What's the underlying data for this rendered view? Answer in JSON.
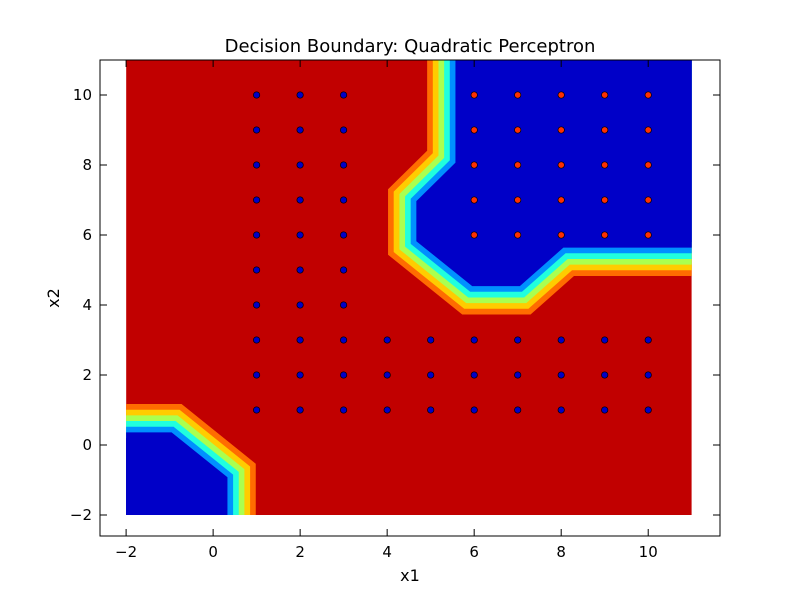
{
  "chart_data": {
    "type": "contour",
    "title": "Decision Boundary: Quadratic Perceptron",
    "xlabel": "x1",
    "ylabel": "x2",
    "xlim": [
      -2.6,
      11.65
    ],
    "ylim": [
      -2.6,
      11.0
    ],
    "xticks": [
      -2,
      0,
      2,
      4,
      6,
      8,
      10
    ],
    "yticks": [
      -2,
      0,
      2,
      4,
      6,
      8,
      10
    ],
    "xtick_labels": [
      "−2",
      "0",
      "2",
      "4",
      "6",
      "8",
      "10"
    ],
    "ytick_labels": [
      "−2",
      "0",
      "2",
      "4",
      "6",
      "8",
      "10"
    ],
    "grid": false,
    "colors": {
      "negative_region": "#c10000",
      "positive_region": "#0000c8",
      "transition_bands": [
        "#c10000",
        "#ff6c00",
        "#ffcc00",
        "#aaff50",
        "#20ffde",
        "#0090ff",
        "#0000c8"
      ],
      "class_blue_point": "#0000c8",
      "class_red_point": "#ff3000"
    },
    "regions": [
      {
        "class": "positive",
        "label_color": "blue",
        "polygon": [
          [
            5.7,
            11
          ],
          [
            11,
            11
          ],
          [
            11,
            5.8
          ],
          [
            8.0,
            5.8
          ],
          [
            7.0,
            4.7
          ],
          [
            6.0,
            4.7
          ],
          [
            4.8,
            5.9
          ],
          [
            4.8,
            6.9
          ],
          [
            5.7,
            8.0
          ]
        ]
      },
      {
        "class": "positive",
        "label_color": "blue",
        "polygon": [
          [
            -2,
            -2
          ],
          [
            0.2,
            -2
          ],
          [
            0.2,
            -1.0
          ],
          [
            -1.0,
            0.2
          ],
          [
            -2,
            0.2
          ]
        ]
      }
    ],
    "series": [
      {
        "color": "blue",
        "points": [
          [
            1,
            1
          ],
          [
            1,
            2
          ],
          [
            1,
            3
          ],
          [
            1,
            4
          ],
          [
            1,
            5
          ],
          [
            1,
            6
          ],
          [
            1,
            7
          ],
          [
            1,
            8
          ],
          [
            1,
            9
          ],
          [
            1,
            10
          ],
          [
            2,
            1
          ],
          [
            2,
            2
          ],
          [
            2,
            3
          ],
          [
            2,
            4
          ],
          [
            2,
            5
          ],
          [
            2,
            6
          ],
          [
            2,
            7
          ],
          [
            2,
            8
          ],
          [
            2,
            9
          ],
          [
            2,
            10
          ],
          [
            3,
            1
          ],
          [
            3,
            2
          ],
          [
            3,
            3
          ],
          [
            3,
            4
          ],
          [
            3,
            5
          ],
          [
            3,
            6
          ],
          [
            3,
            7
          ],
          [
            3,
            8
          ],
          [
            3,
            9
          ],
          [
            3,
            10
          ],
          [
            4,
            1
          ],
          [
            4,
            2
          ],
          [
            4,
            3
          ],
          [
            5,
            1
          ],
          [
            5,
            2
          ],
          [
            5,
            3
          ],
          [
            6,
            1
          ],
          [
            6,
            2
          ],
          [
            6,
            3
          ],
          [
            7,
            1
          ],
          [
            7,
            2
          ],
          [
            7,
            3
          ],
          [
            8,
            1
          ],
          [
            8,
            2
          ],
          [
            8,
            3
          ],
          [
            9,
            1
          ],
          [
            9,
            2
          ],
          [
            9,
            3
          ],
          [
            10,
            1
          ],
          [
            10,
            2
          ],
          [
            10,
            3
          ]
        ]
      },
      {
        "color": "red",
        "points": [
          [
            6,
            6
          ],
          [
            6,
            7
          ],
          [
            6,
            8
          ],
          [
            6,
            9
          ],
          [
            6,
            10
          ],
          [
            7,
            6
          ],
          [
            7,
            7
          ],
          [
            7,
            8
          ],
          [
            7,
            9
          ],
          [
            7,
            10
          ],
          [
            8,
            6
          ],
          [
            8,
            7
          ],
          [
            8,
            8
          ],
          [
            8,
            9
          ],
          [
            8,
            10
          ],
          [
            9,
            6
          ],
          [
            9,
            7
          ],
          [
            9,
            8
          ],
          [
            9,
            9
          ],
          [
            9,
            10
          ],
          [
            10,
            6
          ],
          [
            10,
            7
          ],
          [
            10,
            8
          ],
          [
            10,
            9
          ],
          [
            10,
            10
          ]
        ]
      }
    ],
    "grid_extent": {
      "x": [
        -2,
        11
      ],
      "y": [
        -2,
        11
      ]
    }
  }
}
